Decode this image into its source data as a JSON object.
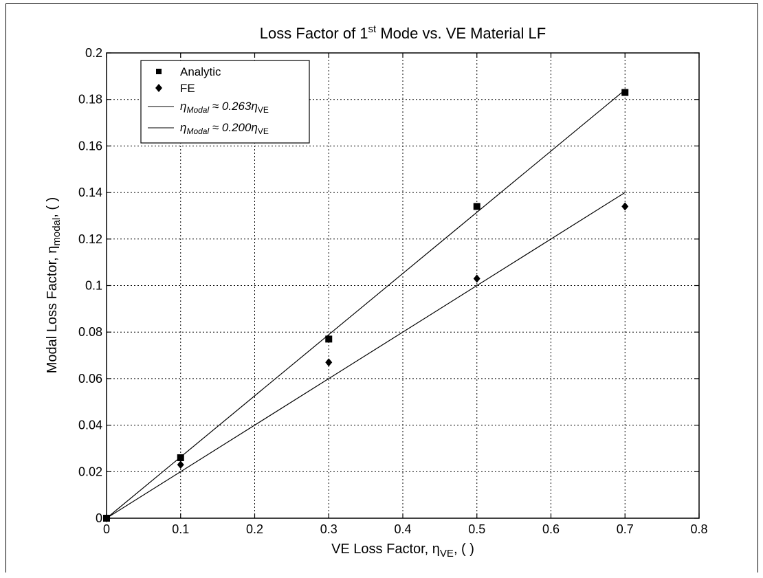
{
  "chart_data": {
    "type": "scatter",
    "title": {
      "main": "Loss Factor of 1",
      "sup": "st",
      "rest": " Mode vs. VE Material LF"
    },
    "xlabel": {
      "main": "VE Loss Factor, η",
      "sub": "VE",
      "rest": ", ( )"
    },
    "ylabel": {
      "main": "Modal Loss Factor, η",
      "sub": "modal",
      "rest": ", ( )"
    },
    "xlim": [
      0,
      0.8
    ],
    "ylim": [
      0,
      0.2
    ],
    "x_ticks": [
      "0",
      "0.1",
      "0.2",
      "0.3",
      "0.4",
      "0.5",
      "0.6",
      "0.7",
      "0.8"
    ],
    "y_ticks": [
      "0",
      "0.02",
      "0.04",
      "0.06",
      "0.08",
      "0.1",
      "0.12",
      "0.14",
      "0.16",
      "0.18",
      "0.2"
    ],
    "grid": true,
    "legend_position": "top-left",
    "series": [
      {
        "name": "Analytic",
        "marker": "square",
        "x": [
          0,
          0.1,
          0.3,
          0.5,
          0.7
        ],
        "y": [
          0,
          0.026,
          0.077,
          0.134,
          0.183
        ]
      },
      {
        "name": "FE",
        "marker": "diamond",
        "x": [
          0,
          0.1,
          0.3,
          0.5,
          0.7
        ],
        "y": [
          0,
          0.023,
          0.067,
          0.103,
          0.134
        ]
      }
    ],
    "fit_lines": [
      {
        "label": {
          "eta": "η",
          "sub1": "Modal",
          "mid": " ≈ 0.263",
          "eta2": "η",
          "sub2": "VE"
        },
        "slope": 0.263,
        "x": [
          0,
          0.7
        ]
      },
      {
        "label": {
          "eta": "η",
          "sub1": "Modal",
          "mid": " ≈ 0.200",
          "eta2": "η",
          "sub2": "VE"
        },
        "slope": 0.2,
        "x": [
          0,
          0.7
        ]
      }
    ]
  }
}
